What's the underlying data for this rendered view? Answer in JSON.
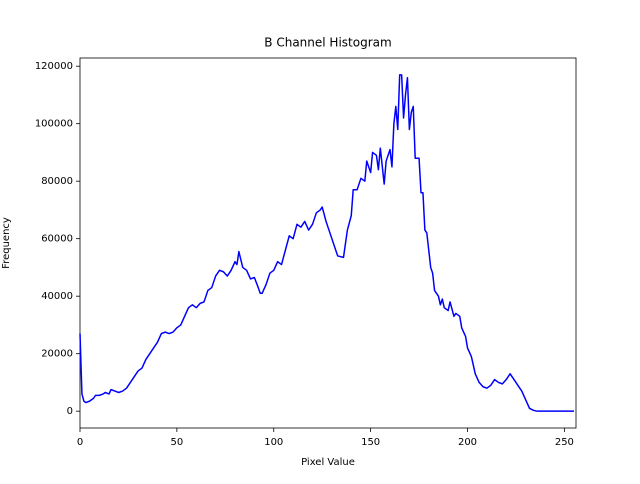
{
  "chart_data": {
    "type": "line",
    "title": "B Channel Histogram",
    "x_label": "Pixel Value",
    "y_label": "Frequency",
    "x": [
      0,
      1,
      2,
      3,
      5,
      7,
      8,
      10,
      12,
      13,
      15,
      16,
      18,
      20,
      22,
      24,
      26,
      28,
      30,
      32,
      34,
      36,
      38,
      40,
      42,
      44,
      46,
      48,
      50,
      52,
      54,
      56,
      58,
      60,
      62,
      64,
      66,
      68,
      70,
      72,
      74,
      76,
      78,
      80,
      81,
      82,
      84,
      86,
      88,
      90,
      92,
      93,
      94,
      96,
      98,
      100,
      102,
      104,
      106,
      108,
      110,
      112,
      114,
      116,
      118,
      120,
      122,
      124,
      125,
      127,
      129,
      131,
      133,
      136,
      138,
      140,
      141,
      143,
      145,
      147,
      148,
      150,
      151,
      153,
      154,
      155,
      157,
      158,
      160,
      161,
      162,
      163,
      164,
      165,
      166,
      167,
      168,
      169,
      170,
      171,
      172,
      173,
      175,
      176,
      177,
      178,
      179,
      181,
      182,
      183,
      185,
      186,
      187,
      188,
      190,
      191,
      193,
      194,
      196,
      197,
      199,
      200,
      202,
      204,
      206,
      208,
      210,
      212,
      214,
      216,
      218,
      220,
      222,
      224,
      226,
      228,
      230,
      232,
      234,
      236,
      240,
      255
    ],
    "values": [
      27000,
      6000,
      3500,
      3000,
      3500,
      4500,
      5500,
      5500,
      6000,
      6500,
      6000,
      7500,
      7000,
      6500,
      7000,
      8000,
      10000,
      12000,
      14000,
      15000,
      18000,
      20000,
      22000,
      24000,
      27000,
      27500,
      27000,
      27500,
      29000,
      30000,
      33000,
      36000,
      37000,
      36000,
      37500,
      38000,
      42000,
      43000,
      47000,
      49000,
      48500,
      47000,
      49000,
      52000,
      51000,
      55500,
      50000,
      49000,
      46000,
      46500,
      43000,
      41000,
      41000,
      44000,
      48000,
      49000,
      52000,
      51000,
      56000,
      61000,
      60000,
      65000,
      64000,
      66000,
      63000,
      65000,
      69000,
      70000,
      71000,
      66000,
      62000,
      58000,
      54000,
      53500,
      63000,
      68000,
      77000,
      77000,
      81000,
      80000,
      87000,
      83000,
      90000,
      89000,
      84000,
      91500,
      79000,
      87000,
      91000,
      85000,
      100000,
      106000,
      98000,
      117000,
      117000,
      102000,
      110000,
      116000,
      98000,
      104000,
      106000,
      88000,
      88000,
      76000,
      76000,
      63000,
      62000,
      50000,
      48000,
      42000,
      40000,
      37000,
      39000,
      36000,
      35000,
      38000,
      33000,
      34000,
      33000,
      29000,
      26000,
      22000,
      19000,
      13000,
      10000,
      8500,
      8000,
      9000,
      11000,
      10000,
      9500,
      11000,
      13000,
      11000,
      9000,
      7000,
      4000,
      1000,
      300,
      0,
      0,
      0
    ],
    "color": "#0000ff",
    "xlim": [
      0,
      256
    ],
    "xticks": [
      0,
      50,
      100,
      150,
      200,
      250
    ],
    "ylim": [
      -5850,
      122850
    ],
    "yticks": [
      0,
      20000,
      40000,
      60000,
      80000,
      100000,
      120000
    ]
  }
}
